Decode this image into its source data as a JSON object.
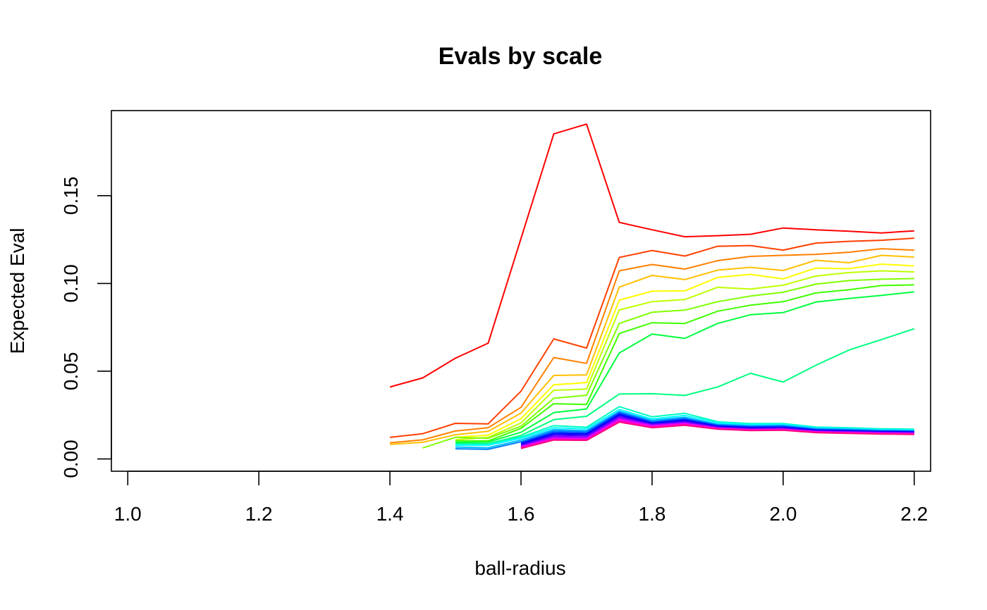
{
  "chart_data": {
    "type": "line",
    "title": "Evals by scale",
    "xlabel": "ball-radius",
    "ylabel": "Expected Eval",
    "xlim": [
      0.975,
      2.225
    ],
    "ylim": [
      -0.007,
      0.1985
    ],
    "xticks": [
      1.0,
      1.2,
      1.4,
      1.6,
      1.8,
      2.0,
      2.2
    ],
    "xtick_labels": [
      "1.0",
      "1.2",
      "1.4",
      "1.6",
      "1.8",
      "2.0",
      "2.2"
    ],
    "yticks": [
      0.0,
      0.05,
      0.1,
      0.15
    ],
    "ytick_labels": [
      "0.00",
      "0.05",
      "0.10",
      "0.15"
    ],
    "grid": false,
    "legend": "none",
    "series": [
      {
        "color": "#ff0000",
        "x": [
          1.4,
          1.45,
          1.5,
          1.55,
          1.6,
          1.65,
          1.7,
          1.75,
          1.8,
          1.85,
          1.9,
          1.95,
          2.0,
          2.05,
          2.1,
          2.15,
          2.2
        ],
        "values": [
          0.041,
          0.0462,
          0.0574,
          0.066,
          0.1256,
          0.1852,
          0.1908,
          0.1348,
          0.1306,
          0.1266,
          0.1272,
          0.128,
          0.1316,
          0.1306,
          0.1298,
          0.1288,
          0.13
        ]
      },
      {
        "color": "#ff4000",
        "x": [
          1.4,
          1.45,
          1.5,
          1.55,
          1.6,
          1.65,
          1.7,
          1.75,
          1.8,
          1.85,
          1.9,
          1.95,
          2.0,
          2.05,
          2.1,
          2.15,
          2.2
        ],
        "values": [
          0.0123,
          0.0144,
          0.0203,
          0.02,
          0.0386,
          0.0684,
          0.0632,
          0.1148,
          0.1188,
          0.1156,
          0.1212,
          0.1216,
          0.119,
          0.123,
          0.124,
          0.1246,
          0.1258
        ]
      },
      {
        "color": "#ff8000",
        "x": [
          1.4,
          1.45,
          1.5,
          1.55,
          1.6,
          1.65,
          1.7,
          1.75,
          1.8,
          1.85,
          1.9,
          1.95,
          2.0,
          2.05,
          2.1,
          2.15,
          2.2
        ],
        "values": [
          0.0092,
          0.0109,
          0.0159,
          0.0178,
          0.0294,
          0.0578,
          0.0545,
          0.1072,
          0.1108,
          0.1082,
          0.113,
          0.1154,
          0.116,
          0.1166,
          0.1178,
          0.1198,
          0.119
        ]
      },
      {
        "color": "#ffbf00",
        "x": [
          1.4,
          1.45,
          1.5,
          1.55,
          1.6,
          1.65,
          1.7,
          1.75,
          1.8,
          1.85,
          1.9,
          1.95,
          2.0,
          2.05,
          2.1,
          2.15,
          2.2
        ],
        "values": [
          0.0083,
          0.0095,
          0.0138,
          0.0158,
          0.0261,
          0.0476,
          0.0479,
          0.0979,
          0.1046,
          0.1022,
          0.1076,
          0.1092,
          0.1074,
          0.1132,
          0.1118,
          0.116,
          0.115
        ]
      },
      {
        "color": "#ffff00",
        "x": [
          1.5,
          1.55,
          1.6,
          1.65,
          1.7,
          1.75,
          1.8,
          1.85,
          1.9,
          1.95,
          2.0,
          2.05,
          2.1,
          2.15,
          2.2
        ],
        "values": [
          0.0123,
          0.0136,
          0.0229,
          0.0423,
          0.0435,
          0.0905,
          0.0956,
          0.0958,
          0.1034,
          0.1052,
          0.1026,
          0.1088,
          0.1084,
          0.111,
          0.11
        ]
      },
      {
        "color": "#bfff00",
        "x": [
          1.5,
          1.55,
          1.6,
          1.65,
          1.7,
          1.75,
          1.8,
          1.85,
          1.9,
          1.95,
          2.0,
          2.05,
          2.1,
          2.15,
          2.2
        ],
        "values": [
          0.0109,
          0.0123,
          0.0205,
          0.0391,
          0.0398,
          0.0849,
          0.0896,
          0.0908,
          0.0978,
          0.0968,
          0.099,
          0.1042,
          0.1062,
          0.1072,
          0.1066
        ]
      },
      {
        "color": "#80ff00",
        "x": [
          1.45,
          1.5,
          1.55,
          1.6,
          1.65,
          1.7,
          1.75,
          1.8,
          1.85,
          1.9,
          1.95,
          2.0,
          2.05,
          2.1,
          2.15,
          2.2
        ],
        "values": [
          0.0063,
          0.0123,
          0.0118,
          0.0186,
          0.0346,
          0.0363,
          0.0772,
          0.0836,
          0.0848,
          0.0896,
          0.0928,
          0.095,
          0.0996,
          0.1016,
          0.1024,
          0.1028
        ]
      },
      {
        "color": "#40ff00",
        "x": [
          1.5,
          1.55,
          1.6,
          1.65,
          1.7,
          1.75,
          1.8,
          1.85,
          1.9,
          1.95,
          2.0,
          2.05,
          2.1,
          2.15,
          2.2
        ],
        "values": [
          0.0103,
          0.0103,
          0.0174,
          0.0315,
          0.031,
          0.0715,
          0.0776,
          0.0772,
          0.0842,
          0.0876,
          0.0896,
          0.0946,
          0.0964,
          0.0988,
          0.0992
        ]
      },
      {
        "color": "#00ff40",
        "x": [
          1.5,
          1.55,
          1.6,
          1.65,
          1.7,
          1.75,
          1.8,
          1.85,
          1.9,
          1.95,
          2.0,
          2.05,
          2.1,
          2.15,
          2.2
        ],
        "values": [
          0.0094,
          0.0096,
          0.0152,
          0.0264,
          0.0285,
          0.0604,
          0.0712,
          0.0687,
          0.0772,
          0.0822,
          0.0834,
          0.0894,
          0.0914,
          0.0932,
          0.0952
        ]
      },
      {
        "color": "#00ff80",
        "x": [
          1.5,
          1.55,
          1.6,
          1.65,
          1.7,
          1.75,
          1.8,
          1.85,
          1.9,
          1.95,
          2.0,
          2.05,
          2.1,
          2.15,
          2.2
        ],
        "values": [
          0.0087,
          0.0087,
          0.0134,
          0.0224,
          0.0243,
          0.037,
          0.0372,
          0.0362,
          0.041,
          0.0488,
          0.0438,
          0.0534,
          0.062,
          0.068,
          0.0742
        ]
      },
      {
        "color": "#00ffbf",
        "x": [
          1.5,
          1.55,
          1.6,
          1.65,
          1.7,
          1.75,
          1.8,
          1.85,
          1.9,
          1.95,
          2.0,
          2.05,
          2.1,
          2.15,
          2.2
        ],
        "values": [
          0.0083,
          0.0083,
          0.0125,
          0.019,
          0.0181,
          0.0298,
          0.024,
          0.026,
          0.0212,
          0.0202,
          0.0202,
          0.0182,
          0.0178,
          0.0172,
          0.017
        ]
      },
      {
        "color": "#00ffff",
        "x": [
          1.5,
          1.55,
          1.6,
          1.65,
          1.7,
          1.75,
          1.8,
          1.85,
          1.9,
          1.95,
          2.0,
          2.05,
          2.1,
          2.15,
          2.2
        ],
        "values": [
          0.0078,
          0.0078,
          0.0118,
          0.0178,
          0.0172,
          0.0282,
          0.0228,
          0.0248,
          0.0206,
          0.0196,
          0.0198,
          0.0178,
          0.0174,
          0.0168,
          0.0166
        ]
      },
      {
        "color": "#00bfff",
        "x": [
          1.5,
          1.55,
          1.6,
          1.65,
          1.7,
          1.75,
          1.8,
          1.85,
          1.9,
          1.95,
          2.0,
          2.05,
          2.1,
          2.15,
          2.2
        ],
        "values": [
          0.0068,
          0.0064,
          0.0108,
          0.0168,
          0.0162,
          0.0272,
          0.022,
          0.0238,
          0.0198,
          0.019,
          0.0192,
          0.0174,
          0.017,
          0.0164,
          0.0162
        ]
      },
      {
        "color": "#0080ff",
        "x": [
          1.5,
          1.55,
          1.6,
          1.65,
          1.7,
          1.75,
          1.8,
          1.85,
          1.9,
          1.95,
          2.0,
          2.05,
          2.1,
          2.15,
          2.2
        ],
        "values": [
          0.0058,
          0.0055,
          0.0098,
          0.016,
          0.0156,
          0.0266,
          0.0214,
          0.0232,
          0.0194,
          0.0186,
          0.0188,
          0.017,
          0.0166,
          0.016,
          0.0158
        ]
      },
      {
        "color": "#0040ff",
        "x": [
          1.6,
          1.65,
          1.7,
          1.75,
          1.8,
          1.85,
          1.9,
          1.95,
          2.0,
          2.05,
          2.1,
          2.15,
          2.2
        ],
        "values": [
          0.0092,
          0.0152,
          0.0148,
          0.026,
          0.0208,
          0.0226,
          0.019,
          0.0182,
          0.0184,
          0.0166,
          0.0162,
          0.0158,
          0.0156
        ]
      },
      {
        "color": "#0000ff",
        "x": [
          1.6,
          1.65,
          1.7,
          1.75,
          1.8,
          1.85,
          1.9,
          1.95,
          2.0,
          2.05,
          2.1,
          2.15,
          2.2
        ],
        "values": [
          0.0086,
          0.0144,
          0.0142,
          0.0252,
          0.0204,
          0.022,
          0.0186,
          0.0178,
          0.018,
          0.0164,
          0.016,
          0.0156,
          0.0154
        ]
      },
      {
        "color": "#4000ff",
        "x": [
          1.6,
          1.65,
          1.7,
          1.75,
          1.8,
          1.85,
          1.9,
          1.95,
          2.0,
          2.05,
          2.1,
          2.15,
          2.2
        ],
        "values": [
          0.008,
          0.0136,
          0.0134,
          0.0244,
          0.0198,
          0.0214,
          0.0182,
          0.0174,
          0.0176,
          0.016,
          0.0156,
          0.0152,
          0.015
        ]
      },
      {
        "color": "#8000ff",
        "x": [
          1.6,
          1.65,
          1.7,
          1.75,
          1.8,
          1.85,
          1.9,
          1.95,
          2.0,
          2.05,
          2.1,
          2.15,
          2.2
        ],
        "values": [
          0.0074,
          0.0128,
          0.0126,
          0.0236,
          0.0194,
          0.0208,
          0.0178,
          0.017,
          0.0172,
          0.0158,
          0.0154,
          0.015,
          0.0148
        ]
      },
      {
        "color": "#bf00ff",
        "x": [
          1.6,
          1.65,
          1.7,
          1.75,
          1.8,
          1.85,
          1.9,
          1.95,
          2.0,
          2.05,
          2.1,
          2.15,
          2.2
        ],
        "values": [
          0.007,
          0.0122,
          0.012,
          0.023,
          0.019,
          0.0204,
          0.0176,
          0.0168,
          0.017,
          0.0156,
          0.0152,
          0.0148,
          0.0146
        ]
      },
      {
        "color": "#ff00ff",
        "x": [
          1.6,
          1.65,
          1.7,
          1.75,
          1.8,
          1.85,
          1.9,
          1.95,
          2.0,
          2.05,
          2.1,
          2.15,
          2.2
        ],
        "values": [
          0.0066,
          0.0116,
          0.0114,
          0.0222,
          0.0186,
          0.02,
          0.0174,
          0.0166,
          0.0168,
          0.0154,
          0.015,
          0.0146,
          0.0144
        ]
      },
      {
        "color": "#ff00bf",
        "x": [
          1.6,
          1.65,
          1.7,
          1.75,
          1.8,
          1.85,
          1.9,
          1.95,
          2.0,
          2.05,
          2.1,
          2.15,
          2.2
        ],
        "values": [
          0.0063,
          0.0112,
          0.011,
          0.0216,
          0.0182,
          0.0196,
          0.0172,
          0.0164,
          0.0166,
          0.0152,
          0.0148,
          0.0144,
          0.0142
        ]
      },
      {
        "color": "#ff0080",
        "x": [
          1.6,
          1.65,
          1.7,
          1.75,
          1.8,
          1.85,
          1.9,
          1.95,
          2.0,
          2.05,
          2.1,
          2.15,
          2.2
        ],
        "values": [
          0.006,
          0.0108,
          0.0106,
          0.021,
          0.0178,
          0.0192,
          0.017,
          0.0162,
          0.0164,
          0.015,
          0.0146,
          0.0142,
          0.014
        ]
      }
    ]
  }
}
